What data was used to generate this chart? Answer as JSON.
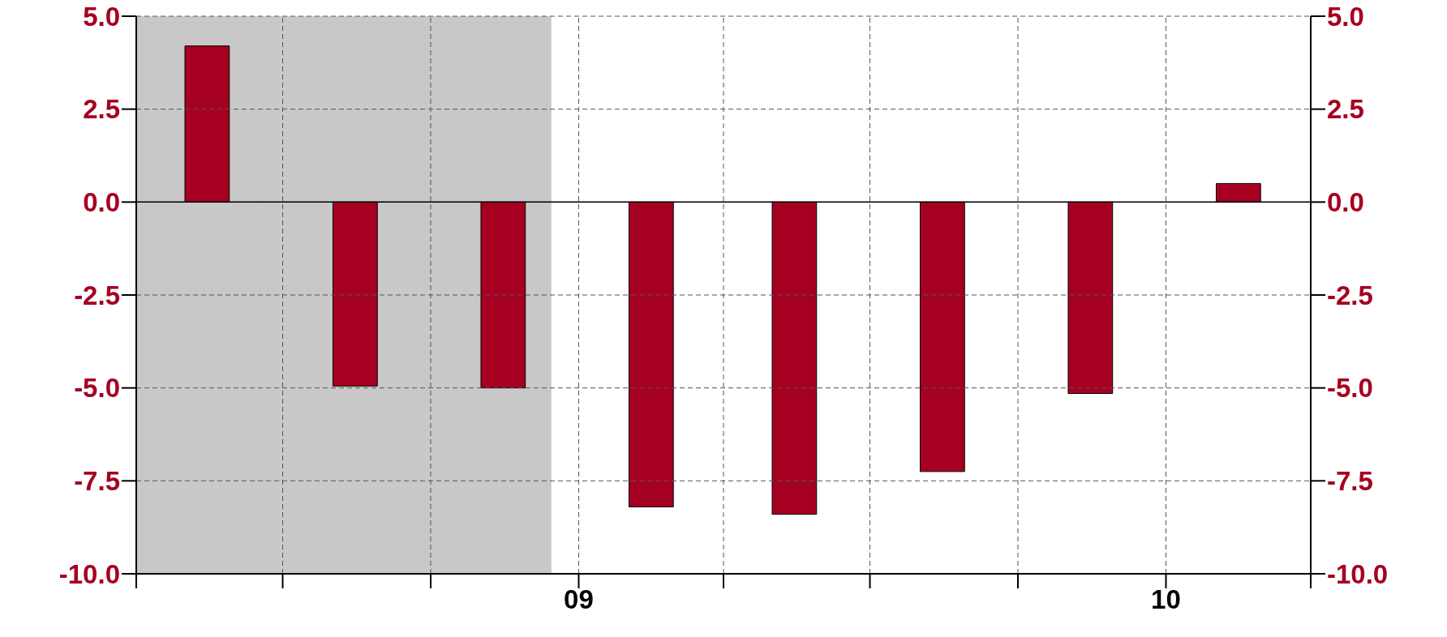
{
  "chart_data": {
    "type": "bar",
    "x": [
      "2008-05-15",
      "2008-08-15",
      "2008-11-15",
      "2009-02-15",
      "2009-05-15",
      "2009-08-15",
      "2009-11-15",
      "2010-02-15"
    ],
    "values": [
      4.2,
      -4.95,
      -5.0,
      -8.2,
      -8.4,
      -7.25,
      -5.15,
      0.5
    ],
    "color": "#a50021",
    "xlim": [
      "2008-04-01",
      "2010-04-01"
    ],
    "xticks": [
      {
        "value": "2008-04-01",
        "label": null
      },
      {
        "value": "2008-07-01",
        "label": null
      },
      {
        "value": "2008-10-01",
        "label": null
      },
      {
        "value": "2009-01-01",
        "label": "09"
      },
      {
        "value": "2009-04-01",
        "label": null
      },
      {
        "value": "2009-07-01",
        "label": null
      },
      {
        "value": "2009-10-01",
        "label": null
      },
      {
        "value": "2010-01-01",
        "label": "10"
      },
      {
        "value": "2010-04-01",
        "label": null
      }
    ],
    "ylim": [
      -10,
      5
    ],
    "yticks": [
      {
        "value": -10,
        "label": "-10.0"
      },
      {
        "value": -7.5,
        "label": "-7.5"
      },
      {
        "value": -5,
        "label": "-5.0"
      },
      {
        "value": -2.5,
        "label": "-2.5"
      },
      {
        "value": 0,
        "label": "0.0"
      },
      {
        "value": 2.5,
        "label": "2.5"
      },
      {
        "value": 5,
        "label": "5.0"
      }
    ],
    "y2lim": [
      -10,
      5
    ],
    "y2ticks": [
      {
        "value": -10,
        "label": "-10.0"
      },
      {
        "value": -7.5,
        "label": "-7.5"
      },
      {
        "value": -5,
        "label": "-5.0"
      },
      {
        "value": -2.5,
        "label": "-2.5"
      },
      {
        "value": 0,
        "label": "0.0"
      },
      {
        "value": 2.5,
        "label": "2.5"
      },
      {
        "value": 5,
        "label": "5.0"
      }
    ],
    "grid": true,
    "bands": [
      {
        "axis": "x",
        "from": "2008-04-01",
        "to": "2008-12-15",
        "color": "#c8c8c8"
      }
    ],
    "ref_lines": [
      {
        "axis": "y",
        "value": 0,
        "color": "#000000"
      }
    ]
  }
}
